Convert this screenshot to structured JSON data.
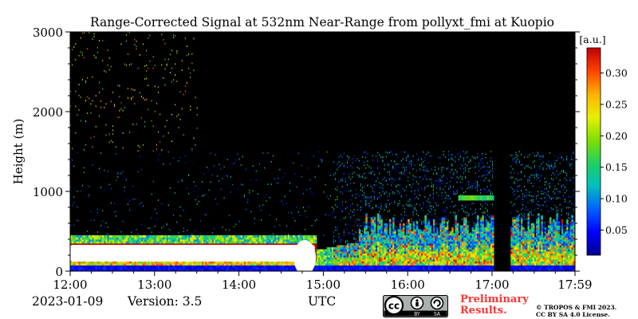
{
  "chart_data": {
    "type": "heatmap",
    "title": "Range-Corrected Signal at 532nm Near-Range from pollyxt_fmi at Kuopio",
    "xlabel": "UTC",
    "ylabel": "Height (m)",
    "x_ticks": [
      "12:00",
      "13:00",
      "14:00",
      "15:00",
      "16:00",
      "17:00",
      "17:59"
    ],
    "x_tick_hours": [
      12.0,
      13.0,
      14.0,
      15.0,
      16.0,
      17.0,
      17.983
    ],
    "xlim_hours": [
      12.0,
      17.983
    ],
    "y_ticks": [
      0,
      1000,
      2000,
      3000
    ],
    "ylim": [
      0,
      3000
    ],
    "colorbar": {
      "label": "[a.u.]",
      "ticks": [
        0.05,
        0.1,
        0.15,
        0.2,
        0.25,
        0.3
      ],
      "tick_labels": [
        "0.05",
        "0.10",
        "0.15",
        "0.20",
        "0.25",
        "0.30"
      ],
      "range": [
        0.01,
        0.34
      ],
      "colormap": [
        "#00008f",
        "#0000ff",
        "#0060ff",
        "#00c0c0",
        "#20d060",
        "#80e000",
        "#e8f000",
        "#ffb000",
        "#ff4000",
        "#c00000"
      ]
    },
    "features": [
      {
        "name": "saturated boundary layer",
        "t_start": 12.0,
        "t_end": 14.9,
        "h_bottom": 120,
        "h_top": 330
      },
      {
        "name": "boundary layer top",
        "t_start": 12.0,
        "t_end": 17.98,
        "h_top_approx": 450
      },
      {
        "name": "lofted aerosol",
        "t_start": 16.6,
        "t_end": 17.0,
        "h_approx": 920
      },
      {
        "name": "data gap",
        "t_start": 17.0,
        "t_end": 17.2
      }
    ]
  },
  "footer": {
    "date": "2023-01-09",
    "version": "Version: 3.5",
    "utc_label": "UTC",
    "preliminary_line1": "Preliminary",
    "preliminary_line2": "Results.",
    "copyright_line1": "© TROPOS & FMI 2023.",
    "copyright_line2": "CC BY SA 4.0 License.",
    "license_badge": {
      "left": "cc",
      "right_top": "by-icon",
      "bottom_left": "BY",
      "bottom_right": "SA"
    }
  },
  "colors": {
    "plot_background": "#000000",
    "preliminary_text": "#ff3333",
    "badge_background": "#aab0ad"
  }
}
